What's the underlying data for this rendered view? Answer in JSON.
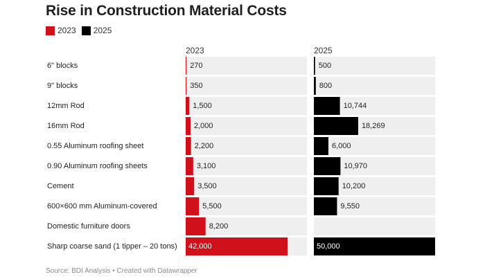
{
  "title": "Rise in Construction Material Costs",
  "source": "Source: BDI Analysis • Created with Datawrapper",
  "colors": {
    "2023": "#d0101a",
    "2025": "#000000",
    "track": "#efefef"
  },
  "chart_data": {
    "type": "bar",
    "title": "Rise in Construction Material Costs",
    "categories": [
      "6\" blocks",
      "9\" blocks",
      "12mm Rod",
      "16mm Rod",
      "0.55 Aluminum roofing sheet",
      "0.90 Aluminum roofing sheets",
      "Cement",
      "600×600 mm Aluminum-covered",
      "Domestic furniture doors",
      "Sharp coarse sand (1 tipper – 20 tons)"
    ],
    "series": [
      {
        "name": "2023",
        "values": [
          270,
          350,
          1500,
          2000,
          2200,
          3100,
          3500,
          5500,
          8200,
          42000
        ],
        "labels": [
          "270",
          "350",
          "1,500",
          "2,000",
          "2,200",
          "3,100",
          "3,500",
          "5,500",
          "8,200",
          "42,000"
        ]
      },
      {
        "name": "2025",
        "values": [
          500,
          800,
          10744,
          18269,
          6000,
          10970,
          10200,
          9550,
          null,
          50000
        ],
        "labels": [
          "500",
          "800",
          "10,744",
          "18,269",
          "6,000",
          "10,970",
          "10,200",
          "9,550",
          "",
          "50,000"
        ]
      }
    ],
    "xlim": [
      0,
      50000
    ],
    "legend": "top-left",
    "grid": false
  }
}
